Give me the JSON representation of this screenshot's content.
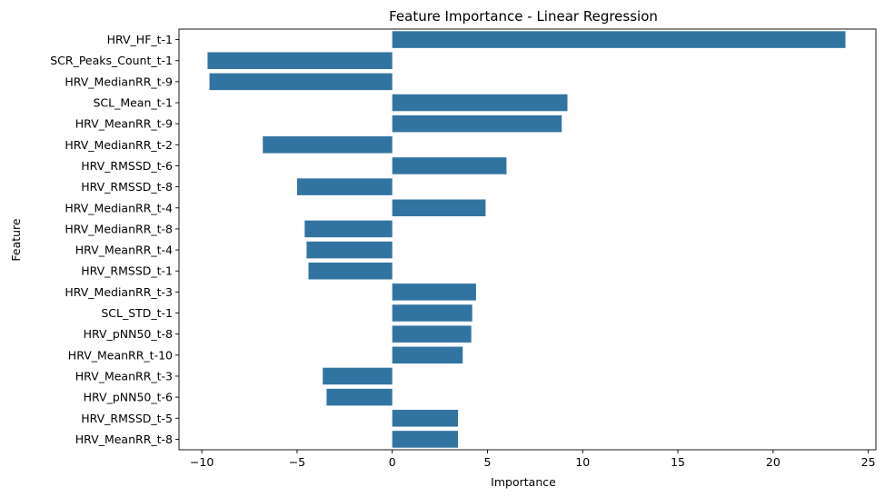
{
  "chart_data": {
    "type": "bar",
    "orientation": "horizontal",
    "title": "Feature Importance - Linear Regression",
    "xlabel": "Importance",
    "ylabel": "Feature",
    "xlim": [
      -11.2,
      25.4
    ],
    "xticks": [
      -10,
      -5,
      0,
      5,
      10,
      15,
      20,
      25
    ],
    "grid": false,
    "bar_color": "#3274a1",
    "categories": [
      "HRV_HF_t-1",
      "SCR_Peaks_Count_t-1",
      "HRV_MedianRR_t-9",
      "SCL_Mean_t-1",
      "HRV_MeanRR_t-9",
      "HRV_MedianRR_t-2",
      "HRV_RMSSD_t-6",
      "HRV_RMSSD_t-8",
      "HRV_MedianRR_t-4",
      "HRV_MedianRR_t-8",
      "HRV_MeanRR_t-4",
      "HRV_RMSSD_t-1",
      "HRV_MedianRR_t-3",
      "SCL_STD_t-1",
      "HRV_pNN50_t-8",
      "HRV_MeanRR_t-10",
      "HRV_MeanRR_t-3",
      "HRV_pNN50_t-6",
      "HRV_RMSSD_t-5",
      "HRV_MeanRR_t-8"
    ],
    "values": [
      23.8,
      -9.7,
      -9.6,
      9.2,
      8.9,
      -6.8,
      6.0,
      -5.0,
      4.9,
      -4.6,
      -4.5,
      -4.4,
      4.4,
      4.2,
      4.15,
      3.7,
      -3.65,
      -3.45,
      3.45,
      3.45
    ]
  }
}
